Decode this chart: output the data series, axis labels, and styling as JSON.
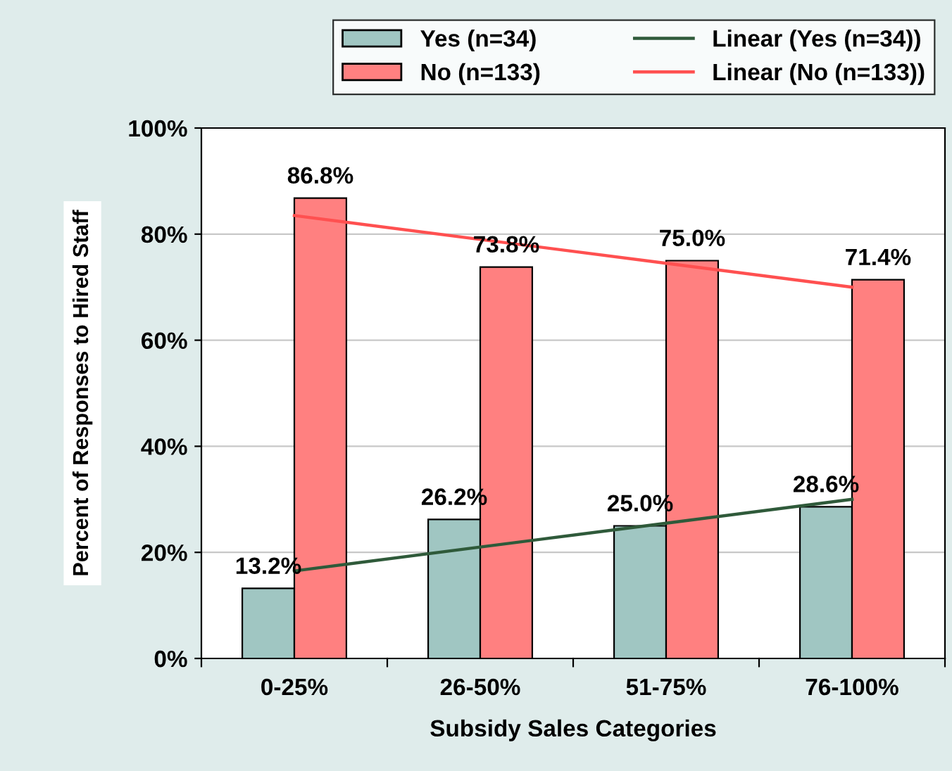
{
  "chart_data": {
    "type": "bar",
    "xlabel": "Subsidy Sales Categories",
    "ylabel": "Percent of Responses to Hired Staff",
    "categories": [
      "0-25%",
      "26-50%",
      "51-75%",
      "76-100%"
    ],
    "series": [
      {
        "name": "Yes (n=34)",
        "color": "#a0c6c2",
        "values": [
          13.2,
          26.2,
          25.0,
          28.6
        ],
        "value_labels": [
          "13.2%",
          "26.2%",
          "25.0%",
          "28.6%"
        ]
      },
      {
        "name": "No (n=133)",
        "color": "#ff8080",
        "values": [
          86.8,
          73.8,
          75.0,
          71.4
        ],
        "value_labels": [
          "86.8%",
          "73.8%",
          "75.0%",
          "71.4%"
        ]
      },
      {
        "name": "Linear (Yes (n=34))",
        "type": "line",
        "color": "#2f5a3a",
        "values": [
          16.5,
          21.0,
          25.5,
          30.0
        ]
      },
      {
        "name": "Linear (No (n=133))",
        "type": "line",
        "color": "#ff5050",
        "values": [
          83.5,
          79.0,
          74.5,
          70.0
        ]
      }
    ],
    "ylim": [
      0,
      100
    ],
    "yticks": [
      {
        "value": 0,
        "label": "0%"
      },
      {
        "value": 20,
        "label": "20%"
      },
      {
        "value": 40,
        "label": "40%"
      },
      {
        "value": 60,
        "label": "60%"
      },
      {
        "value": 80,
        "label": "80%"
      },
      {
        "value": 100,
        "label": "100%"
      }
    ],
    "grid": "y",
    "legend": "top",
    "marker": "none",
    "line_style": "solid"
  }
}
